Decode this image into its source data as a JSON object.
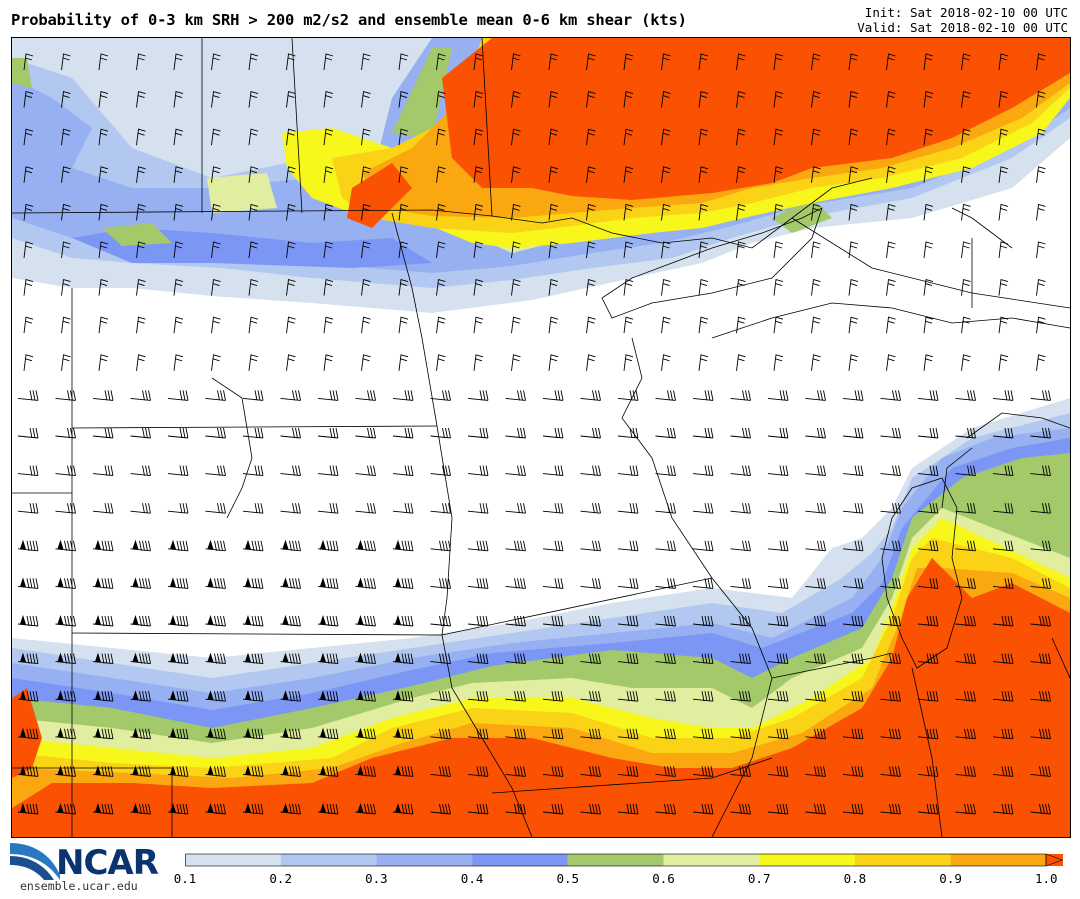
{
  "title": "Probability of 0-3 km SRH > 200 m2/s2 and ensemble mean 0-6 km shear (kts)",
  "init_time": "Init: Sat 2018-02-10 00 UTC",
  "valid_time": "Valid: Sat 2018-02-10 00 UTC",
  "logo": {
    "name": "NCAR",
    "url": "ensemble.ucar.edu"
  },
  "colorbar": {
    "labels": [
      "0.1",
      "0.2",
      "0.3",
      "0.4",
      "0.5",
      "0.6",
      "0.7",
      "0.8",
      "0.9",
      "1.0"
    ],
    "colors": [
      "#d5e1ee",
      "#b2c8f0",
      "#96b0f2",
      "#7b96f4",
      "#a4c96a",
      "#e1eea0",
      "#f7f71c",
      "#fbd316",
      "#fba70f",
      "#fb5103"
    ]
  },
  "map": {
    "fill_colors": {
      "p10": "#d5e1ee",
      "p20": "#b2c8f0",
      "p30": "#96b0f2",
      "p40": "#7b96f4",
      "p50": "#a4c96a",
      "p60": "#e1eea0",
      "p70": "#f7f71c",
      "p80": "#fbd316",
      "p90": "#fba70f",
      "p100": "#fb5103"
    },
    "line_color": "#000000"
  }
}
